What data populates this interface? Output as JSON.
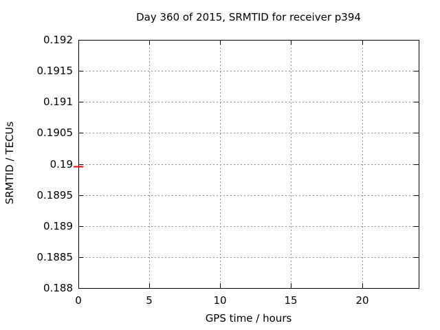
{
  "chart_data": {
    "type": "scatter",
    "title": "Day 360 of 2015, SRMTID for receiver p394",
    "xlabel": "GPS time / hours",
    "ylabel": "SRMTID / TECUs",
    "xlim": [
      0,
      24
    ],
    "ylim": [
      0.188,
      0.192
    ],
    "xticks": {
      "values": [
        0,
        5,
        10,
        15,
        20
      ],
      "labels": [
        "0",
        "5",
        "10",
        "15",
        "20"
      ]
    },
    "yticks": {
      "values": [
        0.188,
        0.1885,
        0.189,
        0.1895,
        0.19,
        0.1905,
        0.191,
        0.1915,
        0.192
      ],
      "labels": [
        "0.188",
        "0.1885",
        "0.189",
        "0.1895",
        "0.19",
        "0.1905",
        "0.191",
        "0.1915",
        "0.192"
      ]
    },
    "grid": true,
    "legend": "none",
    "series": [
      {
        "marker": "horizontal-dash",
        "color": "#ee0000",
        "points": [
          {
            "x": 0,
            "y": 0.18996
          }
        ]
      }
    ],
    "colors": {
      "background": "#ffffff",
      "border": "#000000",
      "grid": "#909090",
      "text": "#000000"
    }
  }
}
